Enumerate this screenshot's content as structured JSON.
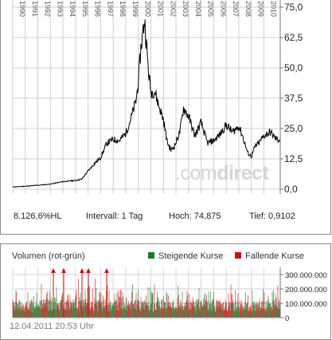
{
  "chart_data": [
    {
      "type": "line",
      "title": "",
      "x_years": [
        "1990",
        "1991",
        "1992",
        "1993",
        "1994",
        "1995",
        "1996",
        "1997",
        "1998",
        "1999",
        "2000",
        "2001",
        "2002",
        "2003",
        "2004",
        "2005",
        "2006",
        "2007",
        "2008",
        "2009",
        "2010"
      ],
      "y_ticks": [
        "75,0",
        "62,5",
        "50,0",
        "37,5",
        "25,0",
        "12,5",
        "0,0"
      ],
      "ylim": [
        0,
        75
      ],
      "xlim": [
        1990.0,
        2011.3
      ],
      "grid": true,
      "x": [
        1990.0,
        1991.0,
        1992.0,
        1993.0,
        1994.0,
        1995.0,
        1995.5,
        1996.0,
        1996.5,
        1997.0,
        1997.5,
        1998.0,
        1998.5,
        1999.0,
        1999.4,
        1999.8,
        2000.0,
        2000.2,
        2000.5,
        2000.8,
        2001.0,
        2001.3,
        2001.6,
        2002.0,
        2002.3,
        2002.6,
        2002.9,
        2003.3,
        2003.6,
        2004.0,
        2004.5,
        2005.0,
        2005.5,
        2006.0,
        2006.5,
        2007.0,
        2007.5,
        2008.0,
        2008.3,
        2008.7,
        2009.0,
        2009.3,
        2009.6,
        2010.0,
        2010.5,
        2011.0,
        2011.25
      ],
      "y": [
        0.9,
        1.2,
        1.6,
        2.1,
        3.1,
        3.6,
        4.1,
        7.5,
        10.5,
        13.0,
        19.0,
        20.5,
        20.0,
        23.0,
        29.0,
        36.0,
        44.0,
        58.0,
        70.0,
        49.0,
        40.0,
        40.5,
        35.0,
        28.5,
        19.5,
        16.0,
        18.0,
        23.5,
        33.5,
        30.0,
        22.0,
        27.5,
        19.0,
        20.0,
        22.5,
        26.5,
        23.5,
        26.0,
        22.0,
        15.0,
        13.5,
        17.5,
        19.0,
        22.0,
        23.5,
        20.5,
        20.5
      ]
    },
    {
      "type": "bar",
      "title": "Volumen (rot-grün)",
      "y_ticks": [
        "300.000.000",
        "200.000.000",
        "100.000.000",
        "0"
      ],
      "ylim": [
        0,
        350000000
      ],
      "series": [
        {
          "name": "Steigende Kurse",
          "color": "#1a7a2e"
        },
        {
          "name": "Fallende Kurse",
          "color": "#cc1111"
        }
      ]
    }
  ],
  "stats": {
    "performance": "8.126,6%HL",
    "interval": "Intervall: 1 Tag",
    "high": "Hoch:  74,875",
    "low": "Tief: 0,9102"
  },
  "volume": {
    "title": "Volumen (rot-grün)",
    "legend_up": "Steigende Kurse",
    "legend_down": "Fallende Kurse",
    "up_color": "#1a7a2e",
    "down_color": "#cc1111"
  },
  "watermark": {
    "part1": ".com",
    "part2": "direct"
  },
  "timestamp": "12.04.2011 20:53 Uhr"
}
